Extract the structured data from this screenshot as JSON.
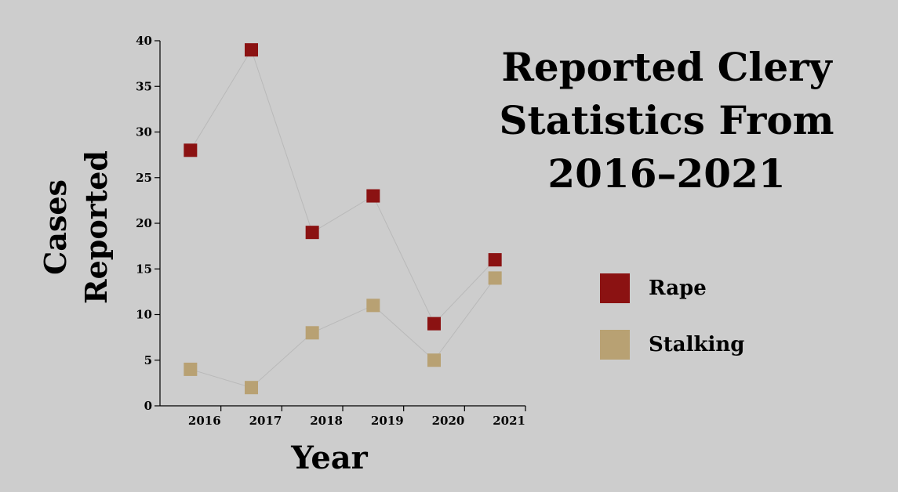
{
  "chart_data": {
    "type": "scatter",
    "title": "Reported Clery Statistics From 2016–2021",
    "xlabel": "Year",
    "ylabel": "Cases Reported",
    "ylabel_lines": [
      "Cases",
      "Reported"
    ],
    "x_ticks": [
      "2016",
      "2017",
      "2018",
      "2019",
      "2020",
      "2021"
    ],
    "y_ticks": [
      0,
      5,
      10,
      15,
      20,
      25,
      30,
      35,
      40
    ],
    "ylim": [
      0,
      40
    ],
    "xlim": [
      2015.0,
      2021.0
    ],
    "x": [
      2015.5,
      2016.5,
      2017.5,
      2018.5,
      2019.5,
      2020.5
    ],
    "series": [
      {
        "name": "Rape",
        "color": "#8b1212",
        "values": [
          28,
          39,
          19,
          23,
          9,
          16
        ]
      },
      {
        "name": "Stalking",
        "color": "#b8a173",
        "values": [
          4,
          2,
          8,
          11,
          5,
          14
        ]
      }
    ],
    "marker": "square",
    "grid": false,
    "legend_position": "right"
  }
}
